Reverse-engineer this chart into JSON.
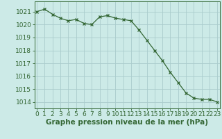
{
  "hours": [
    0,
    1,
    2,
    3,
    4,
    5,
    6,
    7,
    8,
    9,
    10,
    11,
    12,
    13,
    14,
    15,
    16,
    17,
    18,
    19,
    20,
    21,
    22,
    23
  ],
  "pressure": [
    1021.0,
    1021.2,
    1020.8,
    1020.5,
    1020.3,
    1020.4,
    1020.1,
    1020.0,
    1020.6,
    1020.7,
    1020.5,
    1020.4,
    1020.3,
    1019.6,
    1018.8,
    1018.0,
    1017.2,
    1016.3,
    1015.5,
    1014.7,
    1014.3,
    1014.2,
    1014.2,
    1014.0
  ],
  "line_color": "#336633",
  "marker_color": "#336633",
  "bg_color": "#cceae7",
  "grid_color": "#aacccc",
  "text_color": "#336633",
  "ylim_min": 1013.5,
  "ylim_max": 1021.8,
  "yticks": [
    1014,
    1015,
    1016,
    1017,
    1018,
    1019,
    1020,
    1021
  ],
  "xlabel": "Graphe pression niveau de la mer (hPa)",
  "tick_fontsize": 6.5,
  "xlabel_fontsize": 7.5
}
